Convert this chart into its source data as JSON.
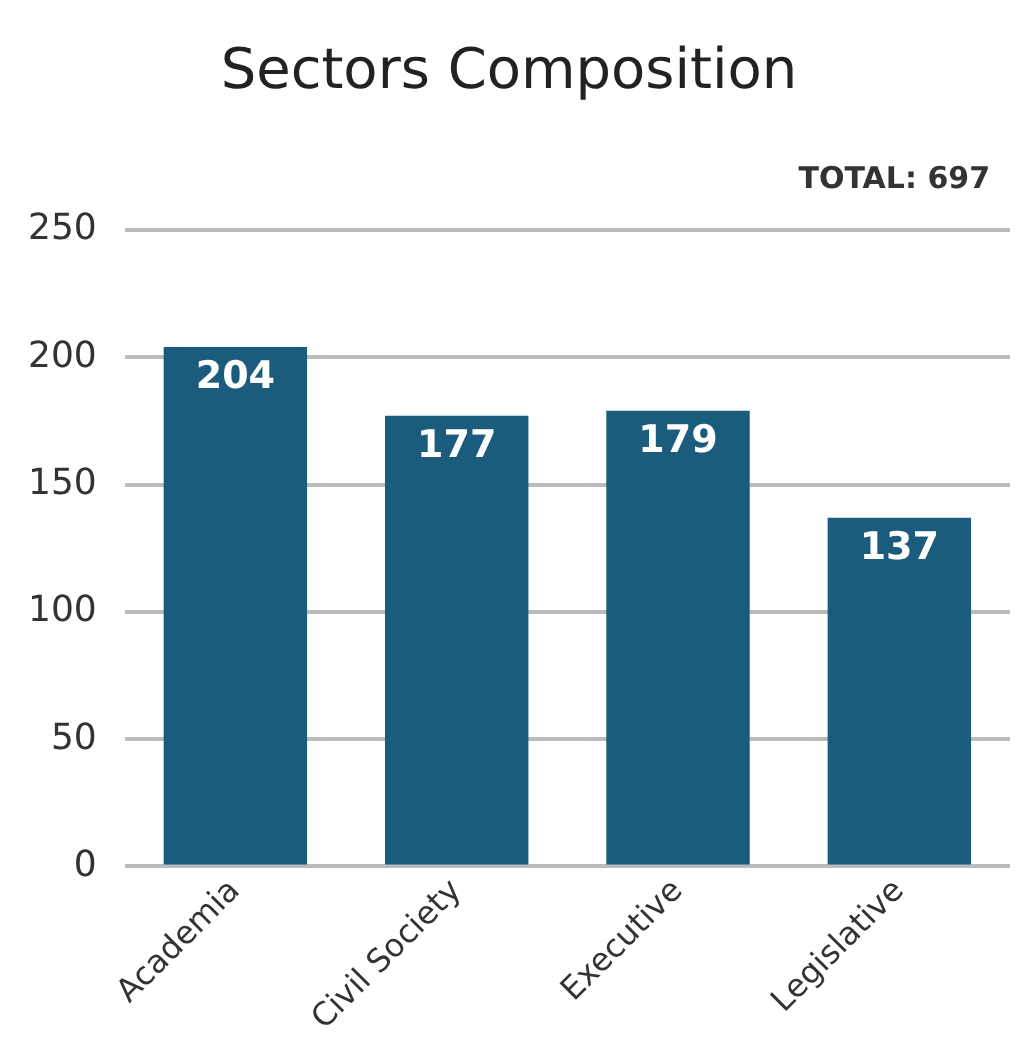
{
  "chart_data": {
    "type": "bar",
    "title": "Sectors Composition",
    "categories": [
      "Academia",
      "Civil Society",
      "Executive",
      "Legislative"
    ],
    "values": [
      204,
      177,
      179,
      137
    ],
    "color": "#1b5b7c",
    "ylim": [
      0,
      250
    ],
    "yticks": [
      0,
      50,
      100,
      150,
      200,
      250
    ],
    "grid": "y",
    "data_labels": true,
    "annotations": [
      "TOTAL: 697"
    ]
  }
}
